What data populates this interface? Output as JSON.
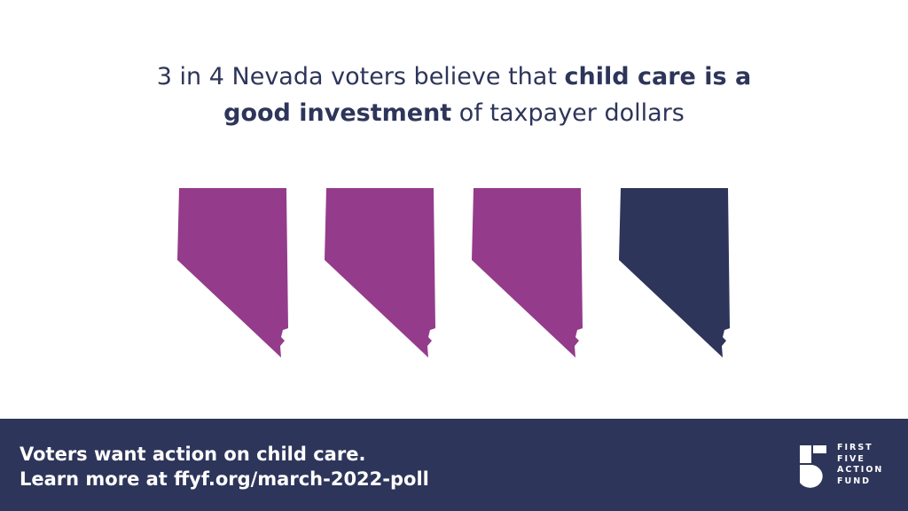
{
  "title": [
    [
      {
        "text": "3 in 4 Nevada voters believe that ",
        "bold": false
      },
      {
        "text": "child care is a",
        "bold": true
      }
    ],
    [
      {
        "text": "good investment",
        "bold": true
      },
      {
        "text": " of taxpayer dollars",
        "bold": false
      }
    ]
  ],
  "icons": [
    {
      "color": "#943c8b"
    },
    {
      "color": "#943c8b"
    },
    {
      "color": "#943c8b"
    },
    {
      "color": "#2e355a"
    }
  ],
  "footer": {
    "lines": [
      "Voters want action on child care.",
      "Learn more at ffyf.org/march-2022-poll"
    ],
    "logo": [
      "FIRST",
      "FIVE",
      "ACTION",
      "FUND"
    ]
  }
}
